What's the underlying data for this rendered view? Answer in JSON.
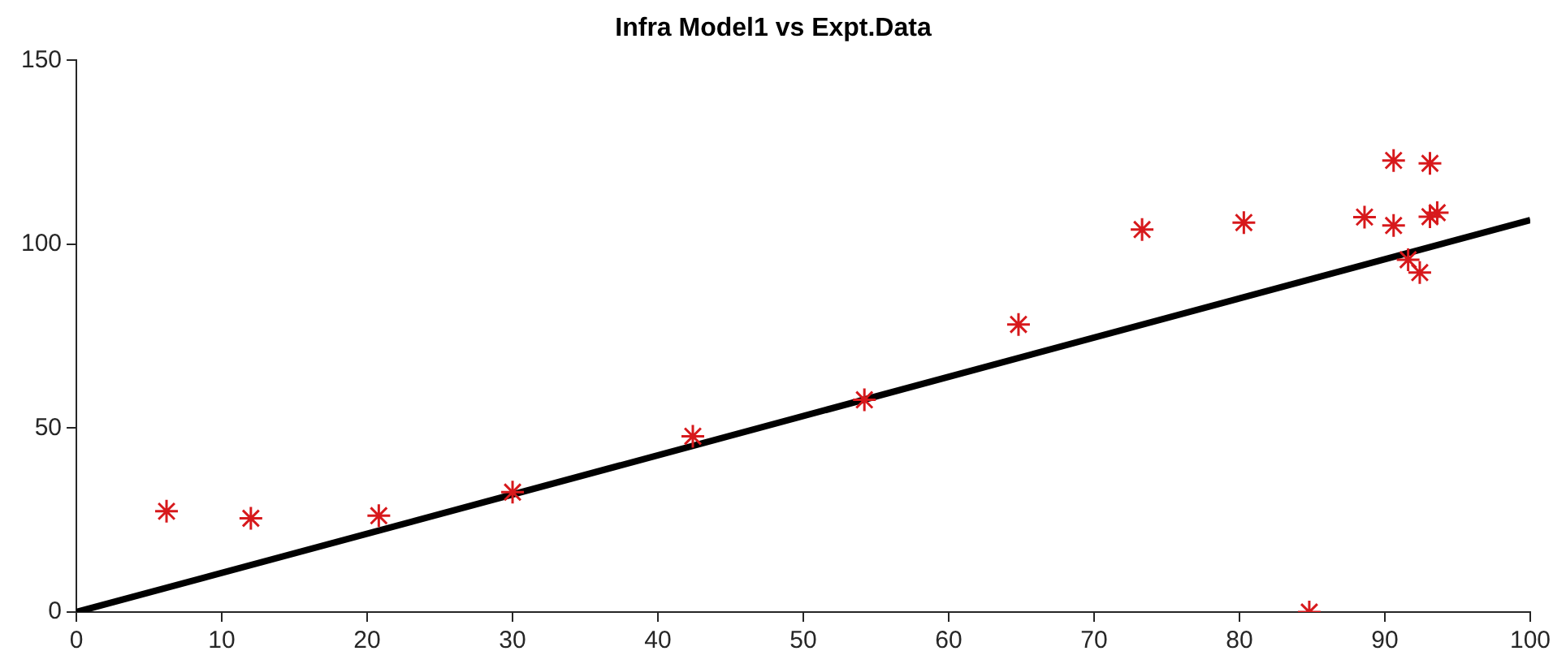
{
  "chart_data": {
    "type": "scatter",
    "title": "Infra Model1 vs Expt.Data",
    "marker": "cross",
    "grid": false,
    "legend": false,
    "xlim": [
      0,
      100
    ],
    "xticks": [
      0,
      10,
      20,
      30,
      40,
      50,
      60,
      70,
      80,
      90,
      100
    ],
    "ylim": [
      0,
      150
    ],
    "yticks": [
      0,
      50,
      100,
      150
    ],
    "series": [
      {
        "type": "scatter",
        "color": "#d7191c",
        "x": [
          6.2,
          12.0,
          20.8,
          30.0,
          42.4,
          54.2,
          64.8,
          73.3,
          80.3,
          88.6,
          90.6,
          93.1,
          90.6,
          93.1,
          93.6,
          91.6,
          92.4,
          84.8
        ],
        "values": [
          27.4,
          25.5,
          26.2,
          32.6,
          47.8,
          57.7,
          78.2,
          104.0,
          105.9,
          107.4,
          122.8,
          122.0,
          105.1,
          107.5,
          108.6,
          95.8,
          92.3,
          0
        ]
      },
      {
        "type": "line",
        "color": "#000000",
        "marker": "none",
        "x": [
          0,
          100
        ],
        "values": [
          0,
          106.6
        ]
      }
    ]
  }
}
